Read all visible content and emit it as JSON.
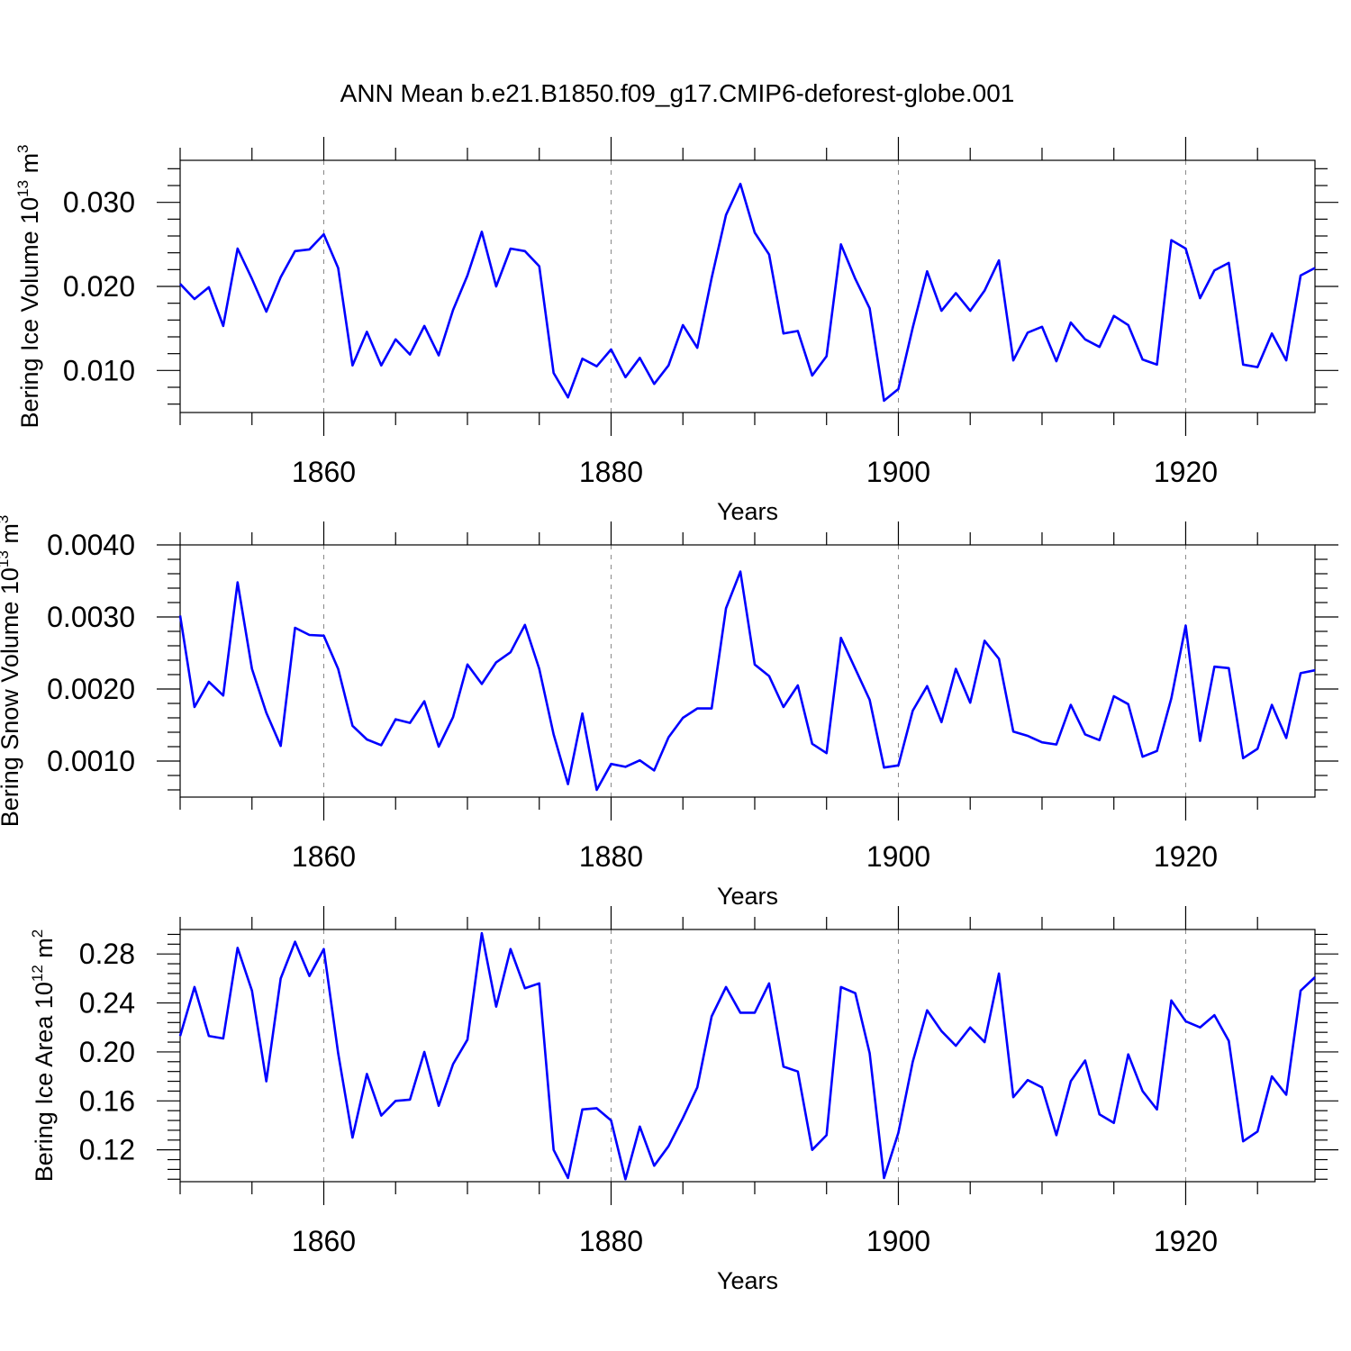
{
  "title": "ANN Mean b.e21.B1850.f09_g17.CMIP6-deforest-globe.001",
  "colors": {
    "line": "#0000ff",
    "axis": "#000000",
    "grid": "#888888",
    "background": "#ffffff"
  },
  "chart_data": [
    {
      "type": "line",
      "xlabel": "Years",
      "ylabel": {
        "text": "Bering Ice Volume 10",
        "exp": "13",
        "unit": " m",
        "unit_exp": "3"
      },
      "xlim": [
        1850,
        1929
      ],
      "ylim": [
        0.005,
        0.035
      ],
      "xticks": [
        1860,
        1880,
        1900,
        1920
      ],
      "xtick_labels": [
        "1860",
        "1880",
        "1900",
        "1920"
      ],
      "yticks": [
        0.01,
        0.02,
        0.03
      ],
      "ytick_labels": [
        "0.010",
        "0.020",
        "0.030"
      ],
      "vertical_dashed_grid_at": [
        1860,
        1880,
        1900,
        1920
      ],
      "x_start": 1850,
      "values": [
        0.0203,
        0.0185,
        0.0199,
        0.0153,
        0.0245,
        0.0209,
        0.017,
        0.0211,
        0.0242,
        0.0244,
        0.0262,
        0.0222,
        0.0106,
        0.0146,
        0.0106,
        0.0137,
        0.0119,
        0.0153,
        0.0118,
        0.0172,
        0.0213,
        0.0265,
        0.02,
        0.0245,
        0.0242,
        0.0224,
        0.0097,
        0.0068,
        0.0114,
        0.0105,
        0.0125,
        0.0092,
        0.0115,
        0.0084,
        0.0106,
        0.0154,
        0.0127,
        0.021,
        0.0285,
        0.0322,
        0.0264,
        0.0238,
        0.0144,
        0.0147,
        0.0094,
        0.0117,
        0.025,
        0.0209,
        0.0174,
        0.0064,
        0.0078,
        0.0151,
        0.0218,
        0.0171,
        0.0192,
        0.0171,
        0.0195,
        0.0231,
        0.0112,
        0.0145,
        0.0152,
        0.0111,
        0.0157,
        0.0137,
        0.0128,
        0.0165,
        0.0154,
        0.0113,
        0.0107,
        0.0255,
        0.0245,
        0.0186,
        0.0219,
        0.0228,
        0.0107,
        0.0104,
        0.0144,
        0.0112,
        0.0213,
        0.0222
      ]
    },
    {
      "type": "line",
      "xlabel": "Years",
      "ylabel": {
        "text": "Bering Snow Volume 10",
        "exp": "13",
        "unit": " m",
        "unit_exp": "3"
      },
      "xlim": [
        1850,
        1929
      ],
      "ylim": [
        0.0005,
        0.004
      ],
      "xticks": [
        1860,
        1880,
        1900,
        1920
      ],
      "xtick_labels": [
        "1860",
        "1880",
        "1900",
        "1920"
      ],
      "yticks": [
        0.001,
        0.002,
        0.003,
        0.004
      ],
      "ytick_labels": [
        "0.0010",
        "0.0020",
        "0.0030",
        "0.0040"
      ],
      "vertical_dashed_grid_at": [
        1860,
        1880,
        1900,
        1920
      ],
      "x_start": 1850,
      "values": [
        0.00302,
        0.00175,
        0.0021,
        0.00191,
        0.00348,
        0.00228,
        0.00167,
        0.00121,
        0.00285,
        0.00275,
        0.00274,
        0.00228,
        0.00149,
        0.0013,
        0.00122,
        0.00158,
        0.00153,
        0.00183,
        0.0012,
        0.00161,
        0.00234,
        0.00207,
        0.00237,
        0.00251,
        0.00289,
        0.00228,
        0.00137,
        0.00068,
        0.00166,
        0.0006,
        0.00096,
        0.00092,
        0.00101,
        0.00087,
        0.00133,
        0.0016,
        0.00173,
        0.00173,
        0.00312,
        0.00363,
        0.00234,
        0.00218,
        0.00175,
        0.00205,
        0.00124,
        0.00111,
        0.00271,
        0.00228,
        0.00185,
        0.00091,
        0.00094,
        0.0017,
        0.00204,
        0.00154,
        0.00228,
        0.00181,
        0.00267,
        0.00242,
        0.00141,
        0.00135,
        0.00126,
        0.00123,
        0.00178,
        0.00137,
        0.00129,
        0.0019,
        0.00179,
        0.00106,
        0.00114,
        0.00187,
        0.00288,
        0.00128,
        0.00231,
        0.00229,
        0.00104,
        0.00117,
        0.00178,
        0.00132,
        0.00222,
        0.00226
      ]
    },
    {
      "type": "line",
      "xlabel": "Years",
      "ylabel": {
        "text": "Bering Ice Area 10",
        "exp": "12",
        "unit": " m",
        "unit_exp": "2"
      },
      "xlim": [
        1850,
        1929
      ],
      "ylim": [
        0.094,
        0.3
      ],
      "xticks": [
        1860,
        1880,
        1900,
        1920
      ],
      "xtick_labels": [
        "1860",
        "1880",
        "1900",
        "1920"
      ],
      "yticks": [
        0.12,
        0.16,
        0.2,
        0.24,
        0.28
      ],
      "ytick_labels": [
        "0.12",
        "0.16",
        "0.20",
        "0.24",
        "0.28"
      ],
      "vertical_dashed_grid_at": [
        1860,
        1880,
        1900,
        1920
      ],
      "x_start": 1850,
      "values": [
        0.213,
        0.253,
        0.213,
        0.211,
        0.285,
        0.25,
        0.176,
        0.26,
        0.29,
        0.262,
        0.284,
        0.199,
        0.13,
        0.182,
        0.148,
        0.16,
        0.161,
        0.2,
        0.156,
        0.19,
        0.21,
        0.297,
        0.237,
        0.284,
        0.252,
        0.256,
        0.12,
        0.097,
        0.153,
        0.154,
        0.144,
        0.096,
        0.139,
        0.107,
        0.123,
        0.146,
        0.171,
        0.229,
        0.253,
        0.232,
        0.232,
        0.256,
        0.188,
        0.184,
        0.12,
        0.132,
        0.253,
        0.248,
        0.199,
        0.097,
        0.134,
        0.192,
        0.234,
        0.217,
        0.205,
        0.22,
        0.208,
        0.264,
        0.163,
        0.177,
        0.171,
        0.132,
        0.176,
        0.193,
        0.149,
        0.142,
        0.198,
        0.168,
        0.153,
        0.242,
        0.225,
        0.22,
        0.23,
        0.209,
        0.127,
        0.135,
        0.18,
        0.165,
        0.25,
        0.261
      ]
    }
  ]
}
